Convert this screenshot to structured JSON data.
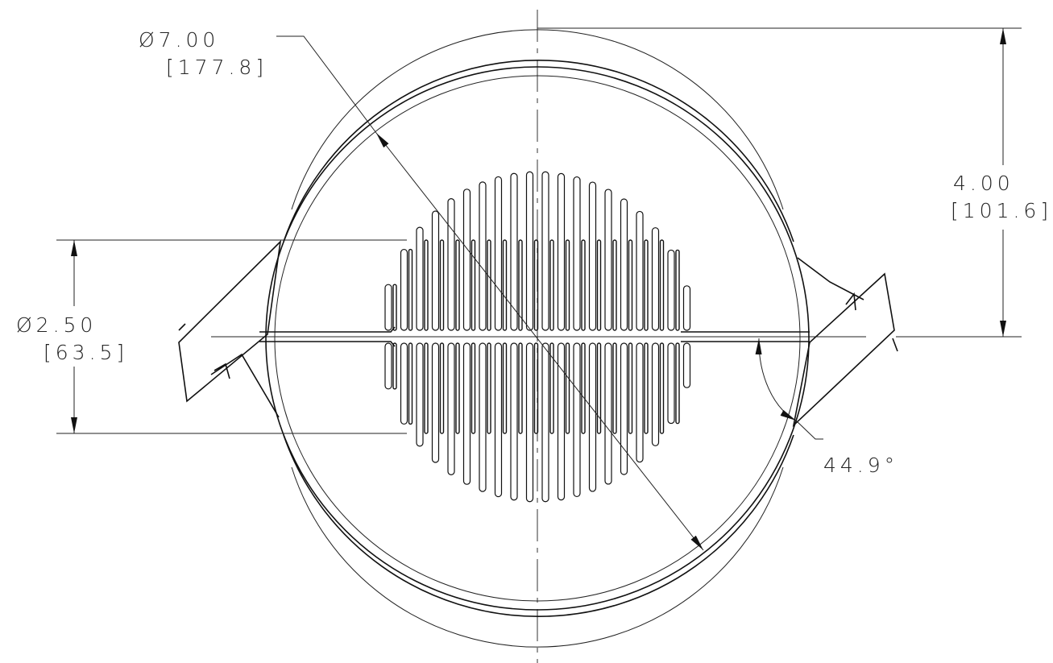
{
  "dimensions": [
    {
      "label": "Ø7.00",
      "secondary": "[177.8]"
    },
    {
      "label": "4.00",
      "secondary": "[101.6]"
    },
    {
      "label": "Ø2.50",
      "secondary": "[63.5]"
    },
    {
      "label": "44.9°"
    }
  ]
}
